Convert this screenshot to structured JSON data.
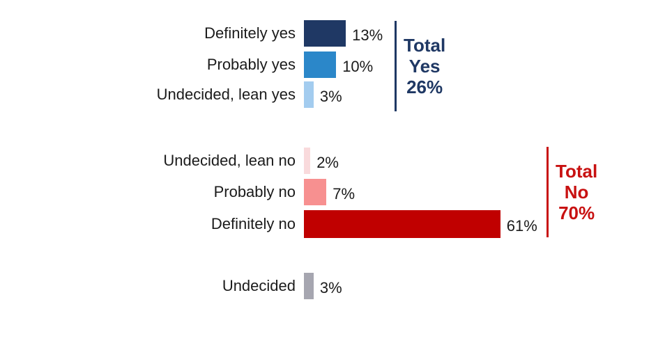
{
  "chart_data": {
    "type": "bar",
    "orientation": "horizontal",
    "title": "",
    "xlabel": "",
    "ylabel": "",
    "xlim": [
      0,
      100
    ],
    "grid": false,
    "categories": [
      "Definitely yes",
      "Probably yes",
      "Undecided, lean yes",
      "Undecided, lean no",
      "Probably no",
      "Definitely no",
      "Undecided"
    ],
    "values": [
      13,
      10,
      3,
      2,
      7,
      61,
      3
    ],
    "rows": [
      {
        "label": "Definitely yes",
        "value": 13,
        "value_label": "13%",
        "color": "#1F3864"
      },
      {
        "label": "Probably yes",
        "value": 10,
        "value_label": "10%",
        "color": "#2B87C9"
      },
      {
        "label": "Undecided, lean yes",
        "value": 3,
        "value_label": "3%",
        "color": "#A3CCEF"
      },
      {
        "label": "Undecided, lean no",
        "value": 2,
        "value_label": "2%",
        "color": "#F9DADC"
      },
      {
        "label": "Probably no",
        "value": 7,
        "value_label": "7%",
        "color": "#F79090"
      },
      {
        "label": "Definitely no",
        "value": 61,
        "value_label": "61%",
        "color": "#C00000"
      },
      {
        "label": "Undecided",
        "value": 3,
        "value_label": "3%",
        "color": "#A6A6B0"
      }
    ],
    "annotations": [
      {
        "name": "total-yes",
        "lines": [
          "Total",
          "Yes",
          "26%"
        ],
        "total_value": 26,
        "color": "#1F3864"
      },
      {
        "name": "total-no",
        "lines": [
          "Total",
          "No",
          "70%"
        ],
        "total_value": 70,
        "color": "#C81111"
      }
    ]
  }
}
